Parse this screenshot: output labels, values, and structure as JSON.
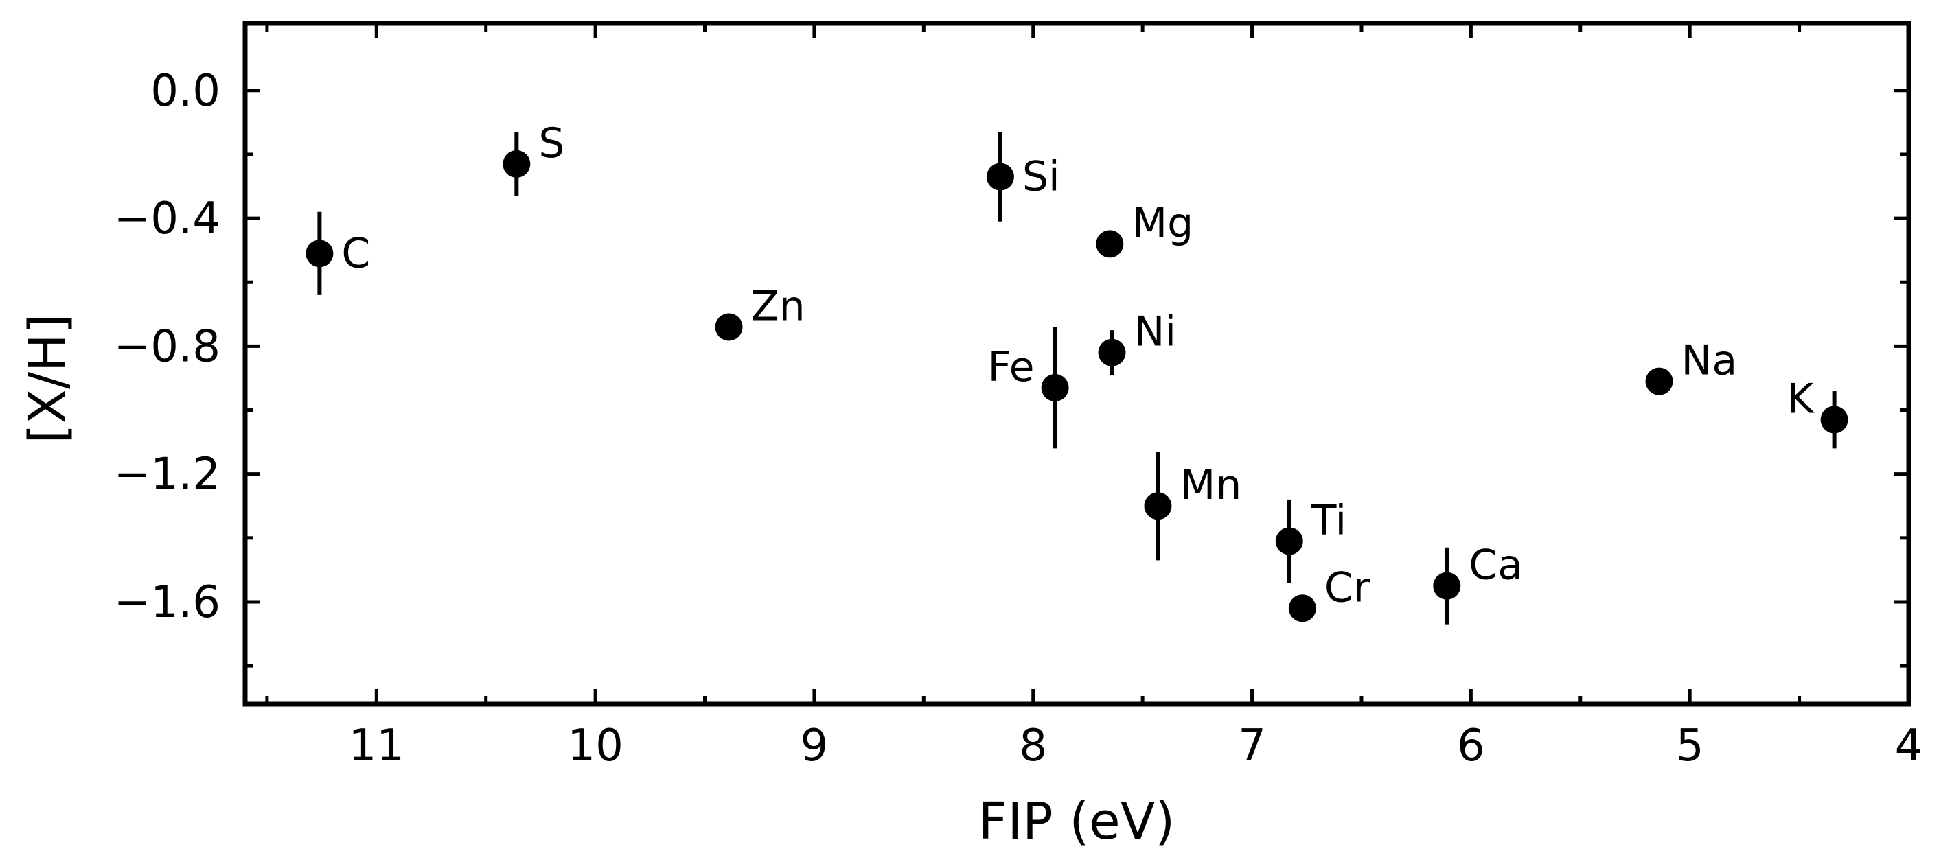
{
  "chart_data": {
    "type": "scatter",
    "title": "",
    "xlabel": "FIP (eV)",
    "ylabel": "[X/H]",
    "xlim": [
      11.6,
      4.0
    ],
    "ylim": [
      -1.92,
      0.21
    ],
    "x_inverted": true,
    "grid": false,
    "legend": "none",
    "ticks_direction": "in",
    "mirror_ticks": true,
    "x_ticks": [
      11,
      10,
      9,
      8,
      7,
      6,
      5,
      4
    ],
    "x_tick_labels": [
      "11",
      "10",
      "9",
      "8",
      "7",
      "6",
      "5",
      "4"
    ],
    "x_minor_ticks": [
      11.5,
      10.5,
      9.5,
      8.5,
      7.5,
      6.5,
      5.5,
      4.5
    ],
    "y_ticks": [
      0.0,
      -0.4,
      -0.8,
      -1.2,
      -1.6
    ],
    "y_tick_labels": [
      "0.0",
      "−0.4",
      "−0.8",
      "−1.2",
      "−1.6"
    ],
    "y_minor_ticks": [
      -0.2,
      -0.6,
      -1.0,
      -1.4,
      -1.8
    ],
    "marker_color": "#000000",
    "points": [
      {
        "label": "C",
        "x": 11.26,
        "y": -0.51,
        "err": 0.13,
        "label_pos": "right"
      },
      {
        "label": "S",
        "x": 10.36,
        "y": -0.23,
        "err": 0.1,
        "label_pos": "upper-right"
      },
      {
        "label": "Zn",
        "x": 9.39,
        "y": -0.74,
        "err": 0.0,
        "label_pos": "upper-right"
      },
      {
        "label": "Si",
        "x": 8.15,
        "y": -0.27,
        "err": 0.14,
        "label_pos": "right"
      },
      {
        "label": "Fe",
        "x": 7.9,
        "y": -0.93,
        "err": 0.19,
        "label_pos": "left"
      },
      {
        "label": "Mg",
        "x": 7.65,
        "y": -0.48,
        "err": 0.0,
        "label_pos": "upper-right"
      },
      {
        "label": "Ni",
        "x": 7.64,
        "y": -0.82,
        "err": 0.07,
        "label_pos": "upper-right"
      },
      {
        "label": "Mn",
        "x": 7.43,
        "y": -1.3,
        "err": 0.17,
        "label_pos": "upper-right"
      },
      {
        "label": "Ti",
        "x": 6.83,
        "y": -1.41,
        "err": 0.13,
        "label_pos": "upper-right"
      },
      {
        "label": "Cr",
        "x": 6.77,
        "y": -1.62,
        "err": 0.04,
        "label_pos": "upper-right"
      },
      {
        "label": "Ca",
        "x": 6.11,
        "y": -1.55,
        "err": 0.12,
        "label_pos": "upper-right"
      },
      {
        "label": "Na",
        "x": 5.14,
        "y": -0.91,
        "err": 0.0,
        "label_pos": "upper-right"
      },
      {
        "label": "K",
        "x": 4.34,
        "y": -1.03,
        "err": 0.09,
        "label_pos": "left"
      }
    ]
  }
}
